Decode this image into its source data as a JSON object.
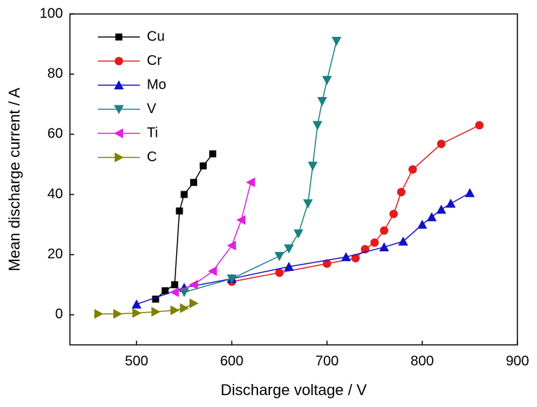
{
  "chart_data": {
    "type": "line",
    "x_label": "Discharge voltage / V",
    "y_label": "Mean discharge current / A",
    "xlim": [
      430,
      900
    ],
    "xticks": [
      500,
      600,
      700,
      800,
      900
    ],
    "ylim": [
      -10,
      100
    ],
    "yticks": [
      0,
      20,
      40,
      60,
      80,
      100
    ],
    "grid": false,
    "legend": "upper left",
    "series": [
      {
        "name": "Cu",
        "color": "#000000",
        "marker": "square",
        "x": [
          520,
          530,
          540,
          545,
          550,
          560,
          570,
          580
        ],
        "values": [
          5.2,
          8,
          10,
          34.5,
          40,
          44,
          49.5,
          53.5
        ]
      },
      {
        "name": "Cr",
        "color": "#e41a1c",
        "marker": "circle",
        "x": [
          600,
          650,
          700,
          730,
          740,
          750,
          760,
          770,
          778,
          790,
          820,
          860
        ],
        "values": [
          11,
          14,
          17,
          18.8,
          21.8,
          24,
          28,
          33.5,
          40.8,
          48.3,
          56.8,
          63
        ]
      },
      {
        "name": "Mo",
        "color": "#1010c8",
        "marker": "triangle-up",
        "x": [
          500,
          550,
          600,
          660,
          720,
          760,
          780,
          800,
          810,
          820,
          830,
          850
        ],
        "values": [
          3.5,
          9,
          12,
          16,
          19.2,
          22.5,
          24.4,
          30,
          32.5,
          35,
          37,
          40.5
        ]
      },
      {
        "name": "V",
        "color": "#1a8080",
        "marker": "triangle-down",
        "x": [
          550,
          600,
          650,
          660,
          670,
          680,
          685,
          690,
          695,
          700,
          710
        ],
        "values": [
          7.5,
          12,
          19.5,
          22,
          27,
          37,
          49.5,
          63,
          71,
          78,
          91
        ]
      },
      {
        "name": "Ti",
        "color": "#e020e0",
        "marker": "triangle-left",
        "x": [
          540,
          560,
          580,
          600,
          610,
          620
        ],
        "values": [
          7.5,
          10,
          14.5,
          23,
          31.5,
          44
        ]
      },
      {
        "name": "C",
        "color": "#808000",
        "marker": "triangle-right",
        "x": [
          460,
          480,
          500,
          520,
          540,
          550,
          560
        ],
        "values": [
          0.3,
          0.3,
          0.6,
          1,
          1.5,
          2.2,
          3.8
        ]
      }
    ]
  }
}
